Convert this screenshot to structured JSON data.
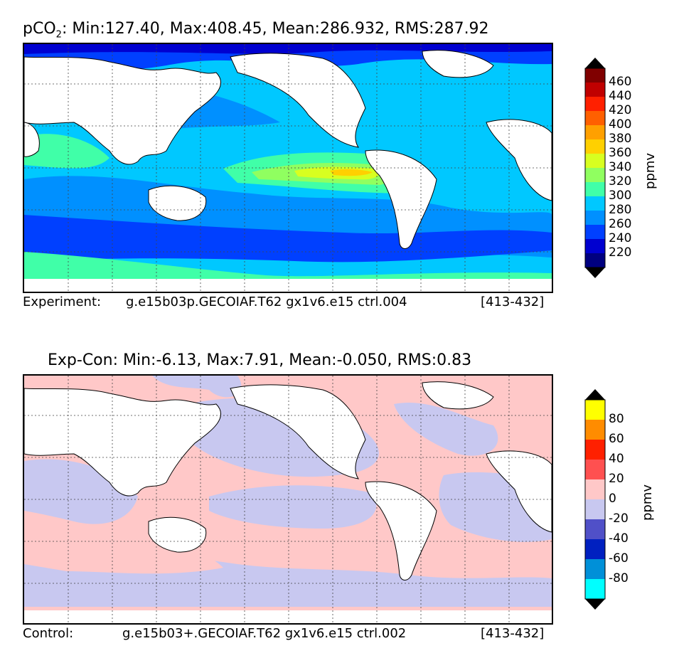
{
  "panel1": {
    "title_prefix": "pCO",
    "title_sub": "2",
    "title_rest": ": Min:127.40, Max:408.45, Mean:286.932, RMS:287.92",
    "footer_left": "Experiment:",
    "footer_mid": "g.e15b03p.GECOIAF.T62 gx1v6.e15 ctrl.004",
    "footer_right": "[413-432]",
    "colorbar": {
      "unit": "ppmv",
      "ticks": [
        "460",
        "440",
        "420",
        "400",
        "380",
        "360",
        "340",
        "320",
        "300",
        "280",
        "260",
        "240",
        "220"
      ],
      "colors": [
        "#800000",
        "#c00000",
        "#ff2000",
        "#ff6000",
        "#ffa000",
        "#ffd000",
        "#d8ff20",
        "#90ff60",
        "#40ffa8",
        "#00c8ff",
        "#0090ff",
        "#0040ff",
        "#0000d0",
        "#000080"
      ],
      "levels": [
        220,
        240,
        260,
        280,
        300,
        320,
        340,
        360,
        380,
        400,
        420,
        440,
        460
      ]
    }
  },
  "panel2": {
    "title": "Exp-Con: Min:-6.13, Max:7.91, Mean:-0.050, RMS:0.83",
    "footer_left": "Control:",
    "footer_mid": "g.e15b03+.GECOIAF.T62 gx1v6.e15 ctrl.002",
    "footer_right": "[413-432]",
    "colorbar": {
      "unit": "ppmv",
      "ticks": [
        "80",
        "60",
        "40",
        "20",
        "0",
        "-20",
        "-40",
        "-60",
        "-80"
      ],
      "colors": [
        "#ffff00",
        "#ff8c00",
        "#ff2000",
        "#ff5050",
        "#ffc8c8",
        "#c8c8f0",
        "#5050c8",
        "#0020c0",
        "#0090d8",
        "#00ffff"
      ],
      "levels": [
        -80,
        -60,
        -40,
        -20,
        0,
        20,
        40,
        60,
        80
      ]
    }
  },
  "colors": {
    "land": "#ffffff",
    "coast": "#000000",
    "grid": "#444444"
  }
}
